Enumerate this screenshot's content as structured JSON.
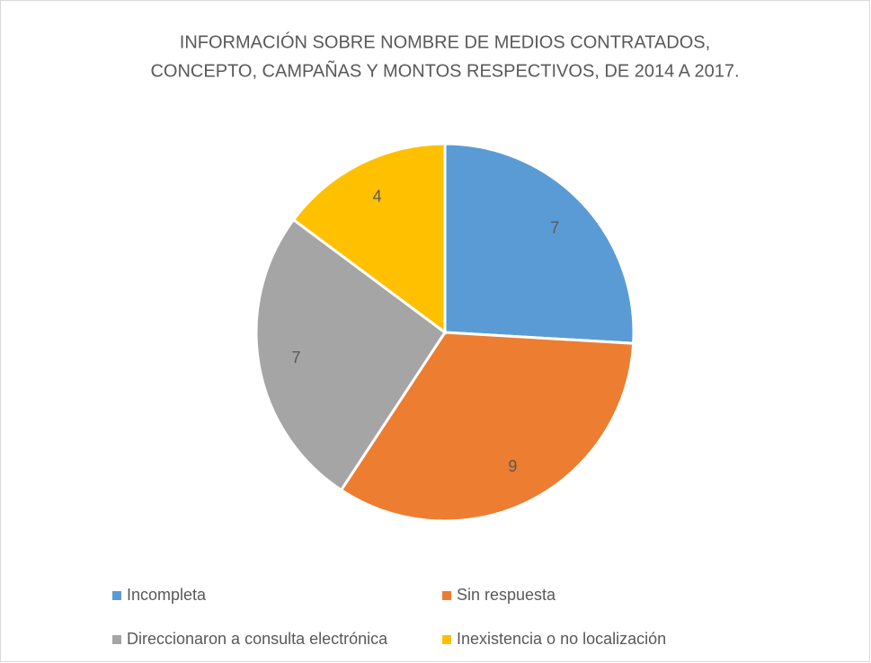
{
  "chart_data": {
    "type": "pie",
    "title": [
      "INFORMACIÓN SOBRE NOMBRE DE MEDIOS CONTRATADOS,",
      "CONCEPTO, CAMPAÑAS Y MONTOS RESPECTIVOS, DE 2014 A 2017."
    ],
    "categories": [
      "Incompleta",
      "Sin respuesta",
      "Direccionaron a consulta electrónica",
      "Inexistencia o no localización"
    ],
    "values": [
      7,
      9,
      7,
      4
    ],
    "colors": [
      "#5b9bd5",
      "#ed7d31",
      "#a5a5a5",
      "#ffc000"
    ],
    "legend": "bottom"
  }
}
